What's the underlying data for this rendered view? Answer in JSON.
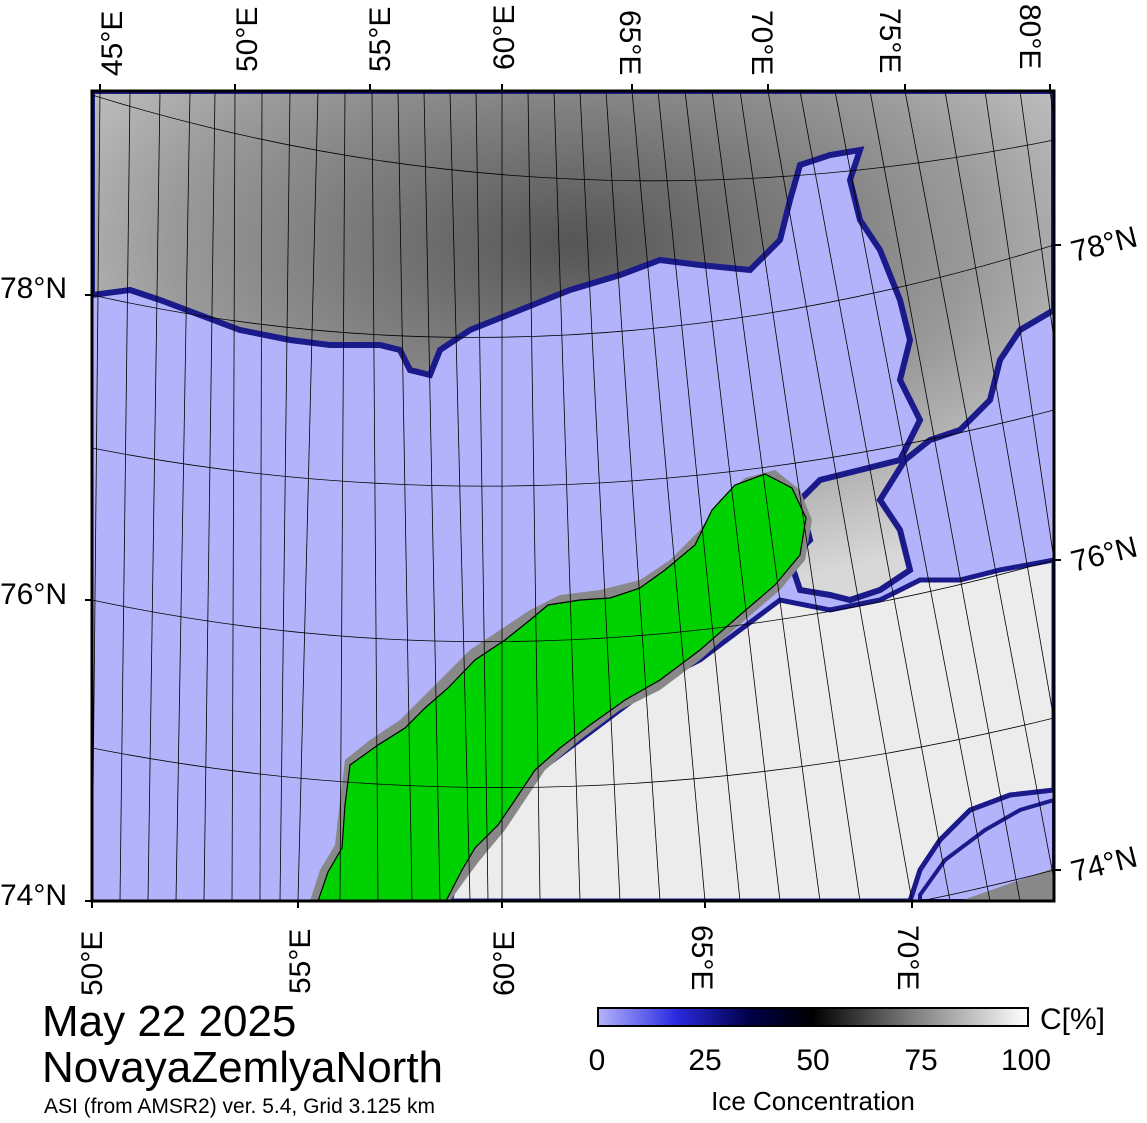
{
  "map": {
    "top_lon_labels": [
      "45°E",
      "50°E",
      "55°E",
      "60°E",
      "65°E",
      "70°E",
      "75°E",
      "80°E"
    ],
    "bottom_lon_labels": [
      "50°E",
      "55°E",
      "60°E",
      "65°E",
      "70°E"
    ],
    "left_lat_labels": [
      "78°N",
      "76°N",
      "74°N"
    ],
    "right_lat_labels": [
      "78°N",
      "76°N",
      "74°N"
    ],
    "colors": {
      "open_water": "#b3b3fb",
      "land": "#00d100",
      "no_data": "#888888",
      "ice_low": "#2a2ae0",
      "ice_mid": "#000000",
      "ice_high": "#ffffff"
    }
  },
  "title": {
    "date": "May 22 2025",
    "region": "NovayaZemlyaNorth",
    "subtitle": "ASI (from AMSR2) ver. 5.4,  Grid 3.125 km"
  },
  "colorbar": {
    "unit": "C[%]",
    "ticks": [
      "0",
      "25",
      "50",
      "75",
      "100"
    ],
    "label": "Ice Concentration",
    "range": [
      0,
      100
    ]
  }
}
